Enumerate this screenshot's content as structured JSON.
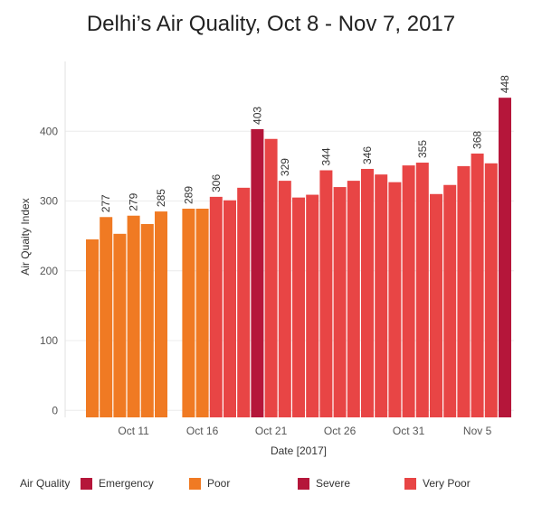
{
  "chart_data": {
    "type": "bar",
    "title": "Delhi’s Air Quality, Oct 8 - Nov 7, 2017",
    "xlabel": "Date [2017]",
    "ylabel": "Air Quaity Index",
    "ylim": [
      -10,
      500
    ],
    "yticks": [
      0,
      100,
      200,
      300,
      400
    ],
    "grid": true,
    "x_tick_labels": [
      {
        "label": "Oct 11",
        "at": "2017-10-11"
      },
      {
        "label": "Oct 16",
        "at": "2017-10-16"
      },
      {
        "label": "Oct 21",
        "at": "2017-10-21"
      },
      {
        "label": "Oct 26",
        "at": "2017-10-26"
      },
      {
        "label": "Oct 31",
        "at": "2017-10-31"
      },
      {
        "label": "Nov 5",
        "at": "2017-11-05"
      }
    ],
    "categories": [
      "2017-10-08",
      "2017-10-09",
      "2017-10-10",
      "2017-10-11",
      "2017-10-12",
      "2017-10-13",
      "2017-10-14",
      "2017-10-15",
      "2017-10-16",
      "2017-10-17",
      "2017-10-18",
      "2017-10-19",
      "2017-10-20",
      "2017-10-21",
      "2017-10-22",
      "2017-10-23",
      "2017-10-24",
      "2017-10-25",
      "2017-10-26",
      "2017-10-27",
      "2017-10-28",
      "2017-10-29",
      "2017-10-30",
      "2017-10-31",
      "2017-11-01",
      "2017-11-02",
      "2017-11-03",
      "2017-11-04",
      "2017-11-05",
      "2017-11-06",
      "2017-11-07"
    ],
    "values": [
      245,
      277,
      253,
      279,
      267,
      285,
      null,
      289,
      289,
      306,
      301,
      319,
      403,
      389,
      329,
      305,
      309,
      344,
      320,
      329,
      346,
      338,
      327,
      351,
      355,
      310,
      323,
      350,
      368,
      354,
      448
    ],
    "quality": [
      "Poor",
      "Poor",
      "Poor",
      "Poor",
      "Poor",
      "Poor",
      null,
      "Poor",
      "Poor",
      "Very Poor",
      "Very Poor",
      "Very Poor",
      "Severe",
      "Very Poor",
      "Very Poor",
      "Very Poor",
      "Very Poor",
      "Very Poor",
      "Very Poor",
      "Very Poor",
      "Very Poor",
      "Very Poor",
      "Very Poor",
      "Very Poor",
      "Very Poor",
      "Very Poor",
      "Very Poor",
      "Very Poor",
      "Very Poor",
      "Very Poor",
      "Severe"
    ],
    "data_labels": [
      {
        "date": "2017-10-09",
        "text": "277"
      },
      {
        "date": "2017-10-11",
        "text": "279"
      },
      {
        "date": "2017-10-13",
        "text": "285"
      },
      {
        "date": "2017-10-15",
        "text": "289"
      },
      {
        "date": "2017-10-17",
        "text": "306"
      },
      {
        "date": "2017-10-20",
        "text": "403"
      },
      {
        "date": "2017-10-22",
        "text": "329"
      },
      {
        "date": "2017-10-25",
        "text": "344"
      },
      {
        "date": "2017-10-28",
        "text": "346"
      },
      {
        "date": "2017-11-01",
        "text": "355"
      },
      {
        "date": "2017-11-05",
        "text": "368"
      },
      {
        "date": "2017-11-07",
        "text": "448"
      }
    ],
    "legend": {
      "title": "Air Quality",
      "placement": "bottom",
      "items": [
        {
          "name": "Emergency",
          "color": "#b5163a"
        },
        {
          "name": "Poor",
          "color": "#f07a23"
        },
        {
          "name": "Severe",
          "color": "#b5163a"
        },
        {
          "name": "Very Poor",
          "color": "#e84545"
        }
      ]
    },
    "colors": {
      "Poor": "#f07a23",
      "Very Poor": "#e84545",
      "Severe": "#b5163a",
      "Emergency": "#b5163a"
    }
  }
}
